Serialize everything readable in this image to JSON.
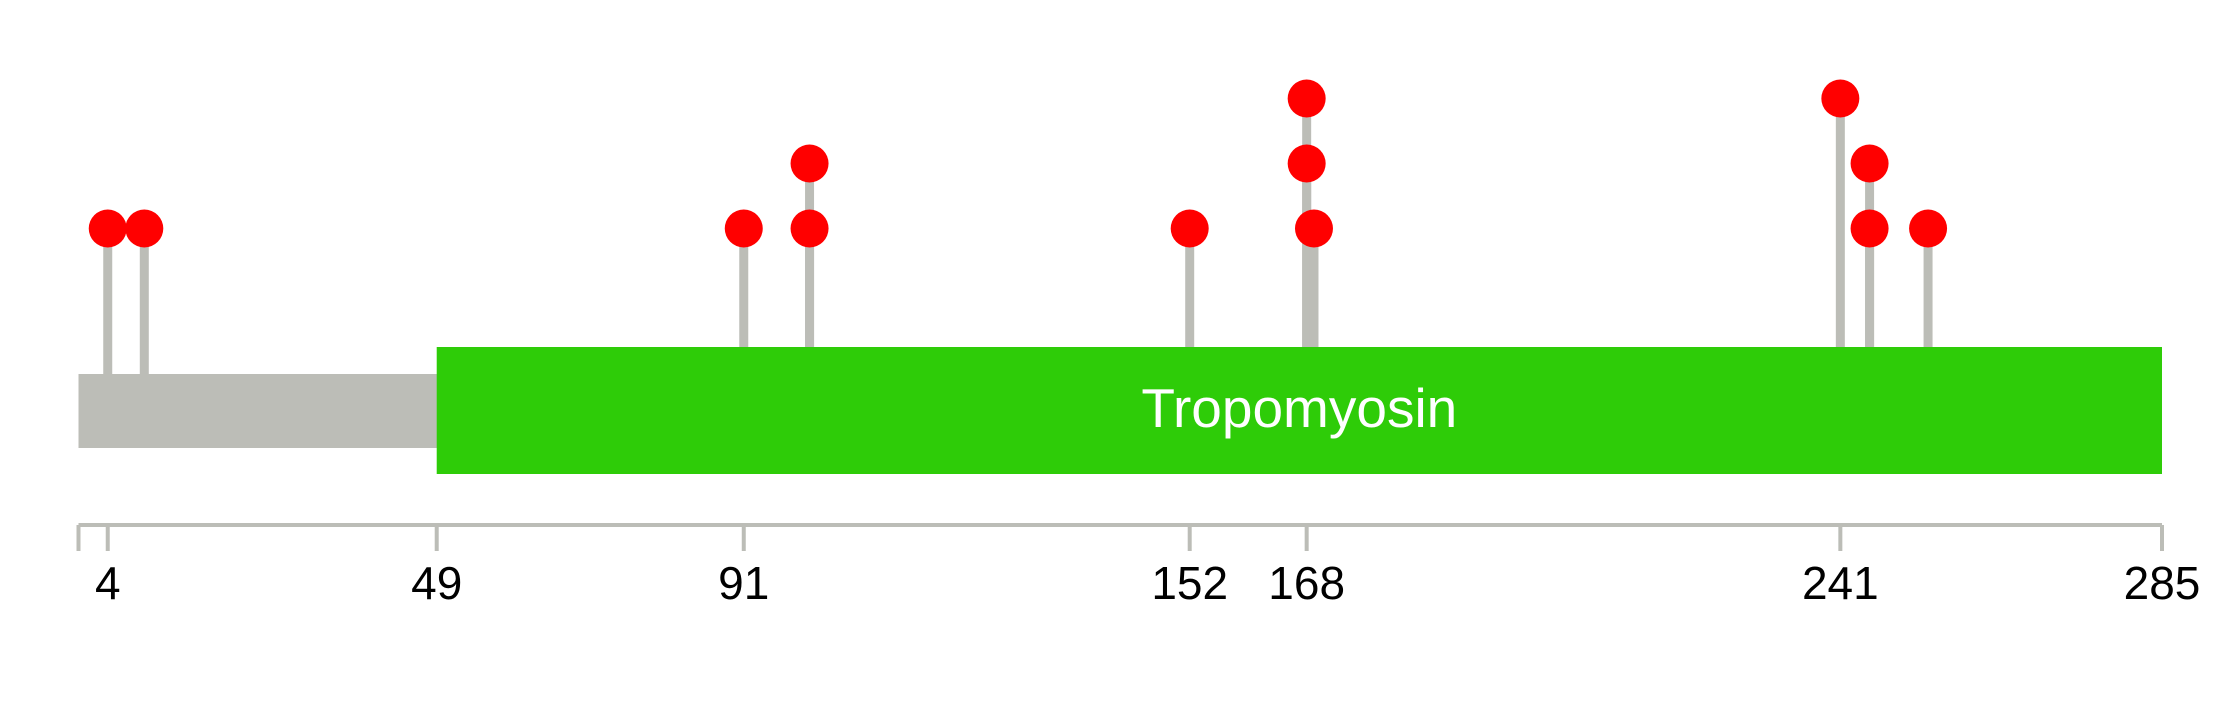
{
  "chart_data": {
    "type": "lollipop",
    "xlim": [
      0,
      285
    ],
    "xticks": [
      4,
      49,
      91,
      152,
      168,
      241,
      285
    ],
    "backbone_color": "#bcbdb7",
    "stem_color": "#bcbdb7",
    "head_color": "#ff0000",
    "domains": [
      {
        "name": "Tropomyosin",
        "start": 49,
        "end": 285,
        "color": "#2ecc08"
      }
    ],
    "positions": [
      4,
      9,
      91,
      100,
      100,
      152,
      168,
      168,
      169,
      241,
      245,
      245,
      253
    ],
    "counts": [
      1,
      1,
      1,
      1,
      2,
      1,
      3,
      2,
      1,
      3,
      2,
      1,
      1
    ]
  }
}
